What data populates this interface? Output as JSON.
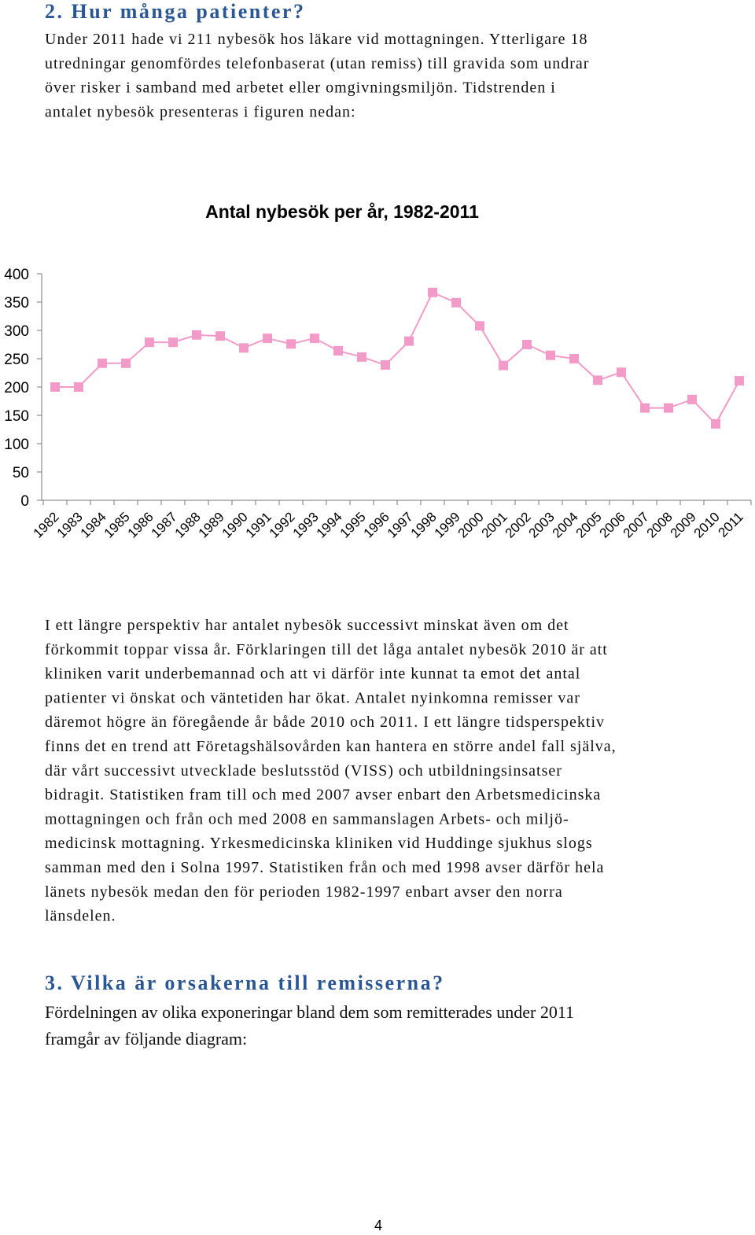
{
  "doc": {
    "heading1": "2. Hur många patienter?",
    "para1": [
      "Under 2011 hade vi 211 nybesök hos läkare vid mottagningen. Ytterligare 18",
      "utredningar genomfördes telefonbaserat (utan remiss) till gravida som undrar",
      "över risker i samband med arbetet eller omgivningsmiljön. Tidstrenden i",
      "antalet nybesök presenteras i figuren nedan:"
    ],
    "para2": [
      "I ett längre perspektiv har antalet nybesök successivt minskat även om det",
      "förkommit toppar vissa år. Förklaringen till det låga antalet nybesök 2010 är att",
      "kliniken varit underbemannad och att vi därför inte kunnat ta emot det antal",
      "patienter vi önskat och väntetiden har ökat. Antalet nyinkomna remisser var",
      "däremot högre än föregående år både 2010 och 2011. I ett längre tidsperspektiv",
      "finns det en trend att Företagshälsovården kan hantera en större andel fall själva,",
      "där vårt successivt utvecklade beslutsstöd (VISS) och utbildningsinsatser",
      "bidragit. Statistiken fram till och med 2007 avser enbart den Arbetsmedicinska",
      "mottagningen och från och med 2008 en sammanslagen Arbets- och miljö-",
      "medicinsk mottagning. Yrkesmedicinska kliniken vid Huddinge sjukhus slogs",
      "samman med den i Solna 1997. Statistiken från och med 1998 avser därför hela",
      "länets nybesök medan den för perioden 1982-1997 enbart avser den norra",
      "länsdelen."
    ],
    "heading2": "3. Vilka är orsakerna till remisserna?",
    "para3": [
      "Fördelningen av olika exponeringar bland dem som remitterades under 2011",
      "framgår av följande diagram:"
    ],
    "page_number": "4"
  },
  "chart_data": {
    "type": "line",
    "title": "Antal nybesök per år, 1982-2011",
    "categories": [
      "1982",
      "1983",
      "1984",
      "1985",
      "1986",
      "1987",
      "1988",
      "1989",
      "1990",
      "1991",
      "1992",
      "1993",
      "1994",
      "1995",
      "1996",
      "1997",
      "1998",
      "1999",
      "2000",
      "2001",
      "2002",
      "2003",
      "2004",
      "2005",
      "2006",
      "2007",
      "2008",
      "2009",
      "2010",
      "2011"
    ],
    "values": [
      200,
      200,
      242,
      242,
      279,
      279,
      292,
      290,
      269,
      286,
      276,
      286,
      264,
      253,
      239,
      281,
      367,
      349,
      308,
      238,
      275,
      256,
      250,
      212,
      226,
      163,
      163,
      178,
      135,
      211
    ],
    "color": "#f39bc8",
    "ylim": [
      0,
      400
    ],
    "yticks": [
      0,
      50,
      100,
      150,
      200,
      250,
      300,
      350,
      400
    ]
  }
}
